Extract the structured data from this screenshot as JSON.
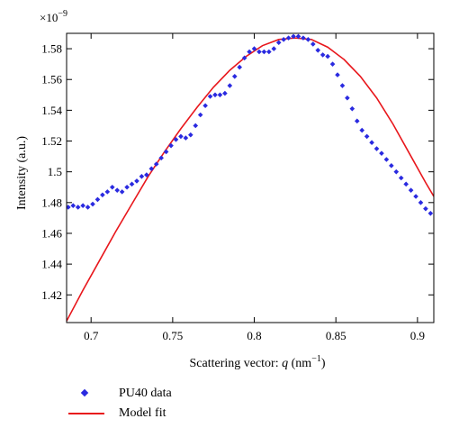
{
  "chart_data": {
    "type": "scatter",
    "xlabel_main": "Scattering vector: ",
    "xlabel_italic": "q",
    "xlabel_unit": " (nm",
    "xlabel_exp": "−1",
    "xlabel_close": ")",
    "ylabel": "Intensity (a.u.)",
    "y_multiplier": "×10",
    "y_multiplier_exp": "−9",
    "xlim": [
      0.685,
      0.91
    ],
    "ylim": [
      1.402,
      1.59
    ],
    "xticks": [
      0.7,
      0.75,
      0.8,
      0.85,
      0.9
    ],
    "xtick_labels": [
      "0.7",
      "0.75",
      "0.8",
      "0.85",
      "0.9"
    ],
    "yticks": [
      1.42,
      1.44,
      1.46,
      1.48,
      1.5,
      1.52,
      1.54,
      1.56,
      1.58
    ],
    "ytick_labels": [
      "1.42",
      "1.44",
      "1.46",
      "1.48",
      "1.5",
      "1.52",
      "1.54",
      "1.56",
      "1.58"
    ],
    "grid": false,
    "legend_position": "bottom-left, below plot",
    "series": [
      {
        "name": "PU40 data",
        "kind": "scatter",
        "color": "#2a2ae0",
        "x": [
          0.686,
          0.689,
          0.692,
          0.695,
          0.698,
          0.701,
          0.704,
          0.707,
          0.71,
          0.713,
          0.716,
          0.719,
          0.722,
          0.725,
          0.728,
          0.731,
          0.734,
          0.737,
          0.74,
          0.743,
          0.746,
          0.749,
          0.752,
          0.755,
          0.758,
          0.761,
          0.764,
          0.767,
          0.77,
          0.773,
          0.776,
          0.779,
          0.782,
          0.785,
          0.788,
          0.791,
          0.794,
          0.797,
          0.8,
          0.803,
          0.806,
          0.809,
          0.812,
          0.815,
          0.818,
          0.821,
          0.824,
          0.827,
          0.83,
          0.833,
          0.836,
          0.839,
          0.842,
          0.845,
          0.848,
          0.851,
          0.854,
          0.857,
          0.86,
          0.863,
          0.866,
          0.869,
          0.872,
          0.875,
          0.878,
          0.881,
          0.884,
          0.887,
          0.89,
          0.893,
          0.896,
          0.899,
          0.902,
          0.905,
          0.908
        ],
        "y": [
          1.477,
          1.478,
          1.477,
          1.478,
          1.477,
          1.479,
          1.482,
          1.485,
          1.487,
          1.49,
          1.488,
          1.487,
          1.49,
          1.492,
          1.494,
          1.497,
          1.498,
          1.502,
          1.505,
          1.509,
          1.513,
          1.517,
          1.521,
          1.523,
          1.522,
          1.524,
          1.53,
          1.537,
          1.543,
          1.549,
          1.55,
          1.55,
          1.551,
          1.556,
          1.562,
          1.568,
          1.574,
          1.578,
          1.58,
          1.578,
          1.578,
          1.578,
          1.58,
          1.584,
          1.586,
          1.587,
          1.588,
          1.588,
          1.587,
          1.586,
          1.583,
          1.579,
          1.576,
          1.575,
          1.57,
          1.563,
          1.556,
          1.548,
          1.541,
          1.533,
          1.527,
          1.523,
          1.519,
          1.515,
          1.512,
          1.508,
          1.504,
          1.5,
          1.496,
          1.492,
          1.488,
          1.484,
          1.48,
          1.476,
          1.473
        ]
      },
      {
        "name": "Model fit",
        "kind": "line",
        "color": "#e8171c",
        "x": [
          0.685,
          0.695,
          0.705,
          0.715,
          0.725,
          0.735,
          0.745,
          0.755,
          0.765,
          0.775,
          0.785,
          0.795,
          0.805,
          0.815,
          0.825,
          0.835,
          0.845,
          0.855,
          0.865,
          0.875,
          0.885,
          0.895,
          0.905,
          0.91
        ],
        "y": [
          1.403,
          1.423,
          1.442,
          1.461,
          1.479,
          1.497,
          1.513,
          1.528,
          1.542,
          1.555,
          1.566,
          1.575,
          1.582,
          1.586,
          1.587,
          1.586,
          1.581,
          1.573,
          1.562,
          1.548,
          1.531,
          1.512,
          1.493,
          1.484
        ]
      }
    ]
  }
}
